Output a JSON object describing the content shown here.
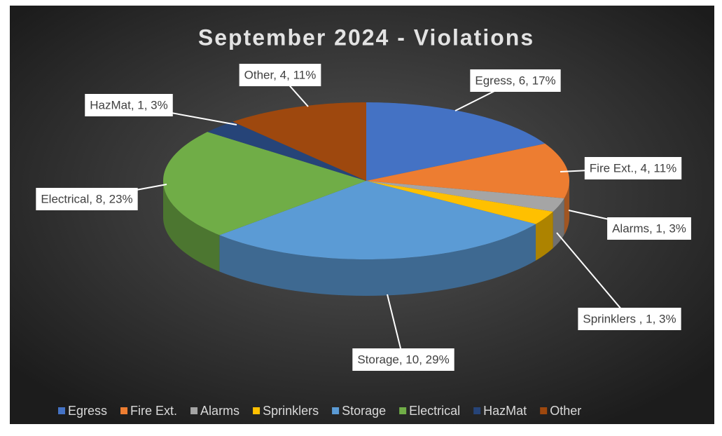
{
  "chart_data": {
    "type": "pie",
    "title": "September 2024 - Violations",
    "categories": [
      "Egress",
      "Fire Ext.",
      "Alarms",
      "Sprinklers",
      "Storage",
      "Electrical",
      "HazMat",
      "Other"
    ],
    "values": [
      6,
      4,
      1,
      1,
      10,
      8,
      1,
      4
    ],
    "value_labels": [
      "Egress, 6, 17%",
      "Fire Ext., 4, 11%",
      "Alarms, 1, 3%",
      "Sprinklers , 1, 3%",
      "Storage, 10, 29%",
      "Electrical, 8, 23%",
      "HazMat, 1, 3%",
      "Other, 4, 11%"
    ],
    "colors": [
      "#4472c4",
      "#ed7d31",
      "#a5a5a5",
      "#ffc000",
      "#5b9bd5",
      "#70ad47",
      "#264478",
      "#9e480e"
    ],
    "legend": "bottom"
  }
}
